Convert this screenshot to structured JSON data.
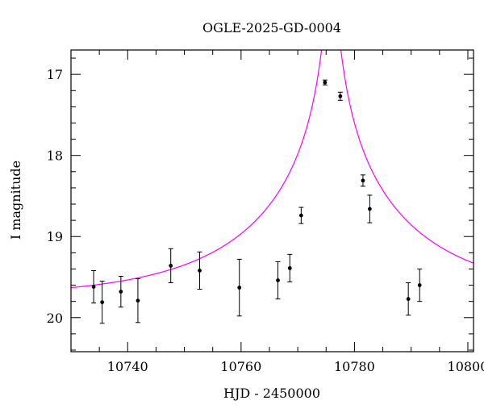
{
  "chart_data": {
    "type": "scatter",
    "title": "OGLE-2025-GD-0004",
    "xlabel": "HJD - 2450000",
    "ylabel": "I magnitude",
    "xlim": [
      10730,
      10801
    ],
    "ylim": [
      20.42,
      16.7
    ],
    "y_inverted": true,
    "x_ticks": [
      10740,
      10760,
      10780,
      10800
    ],
    "y_ticks": [
      17,
      18,
      19,
      20
    ],
    "grid": false,
    "colors": {
      "points": "#000000",
      "model": "#ff00ff"
    },
    "points": [
      {
        "x": 10734.0,
        "y": 19.62,
        "err": 0.2
      },
      {
        "x": 10735.5,
        "y": 19.81,
        "err": 0.26
      },
      {
        "x": 10738.8,
        "y": 19.68,
        "err": 0.19
      },
      {
        "x": 10741.8,
        "y": 19.79,
        "err": 0.27
      },
      {
        "x": 10747.6,
        "y": 19.36,
        "err": 0.21
      },
      {
        "x": 10752.7,
        "y": 19.42,
        "err": 0.23
      },
      {
        "x": 10759.7,
        "y": 19.63,
        "err": 0.35
      },
      {
        "x": 10766.5,
        "y": 19.54,
        "err": 0.23
      },
      {
        "x": 10768.6,
        "y": 19.39,
        "err": 0.17
      },
      {
        "x": 10770.6,
        "y": 18.74,
        "err": 0.1
      },
      {
        "x": 10774.8,
        "y": 17.1,
        "err": 0.03
      },
      {
        "x": 10777.5,
        "y": 17.27,
        "err": 0.05
      },
      {
        "x": 10781.5,
        "y": 18.31,
        "err": 0.07
      },
      {
        "x": 10782.7,
        "y": 18.66,
        "err": 0.17
      },
      {
        "x": 10789.5,
        "y": 19.77,
        "err": 0.2
      },
      {
        "x": 10791.5,
        "y": 19.6,
        "err": 0.2
      }
    ],
    "model": {
      "kind": "point-lens",
      "t0": 10775.9,
      "u0": 0.018,
      "tE": 30,
      "baseline_mag": 19.76
    }
  }
}
